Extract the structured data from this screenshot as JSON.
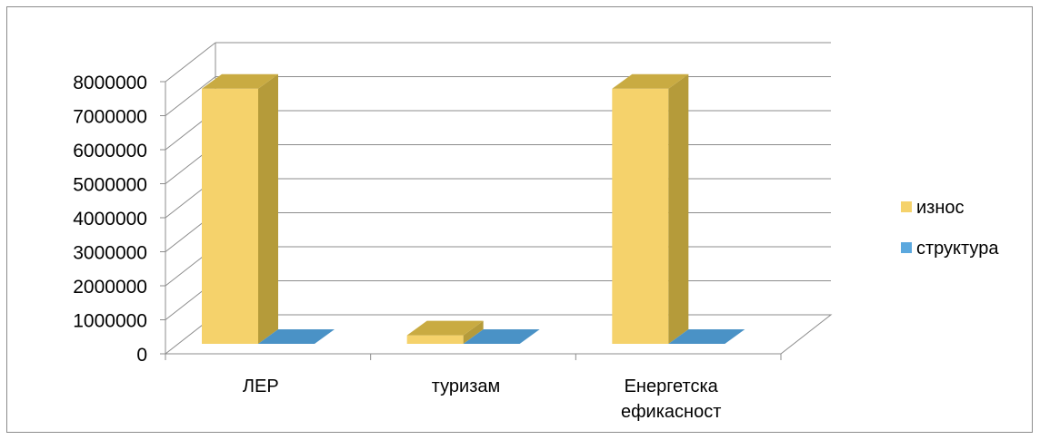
{
  "chart_data": {
    "type": "bar",
    "categories": [
      "ЛЕР",
      "туризам",
      "Енергетска ефикасност"
    ],
    "series": [
      {
        "name": "износ",
        "values": [
          7500000,
          250000,
          7500000
        ],
        "color": "#f5d26b",
        "side_color": "#b59b3a",
        "top_color": "#c9ab42"
      },
      {
        "name": "структура",
        "values": [
          0,
          0,
          0
        ],
        "color": "#5ba8de",
        "side_color": "#3f7fae",
        "top_color": "#4a92c6"
      }
    ],
    "ylim": [
      0,
      8000000
    ],
    "yticks": [
      "0",
      "1000000",
      "2000000",
      "3000000",
      "4000000",
      "5000000",
      "6000000",
      "7000000",
      "8000000"
    ],
    "grid": true,
    "legend_position": "right",
    "style": "3d-column"
  }
}
